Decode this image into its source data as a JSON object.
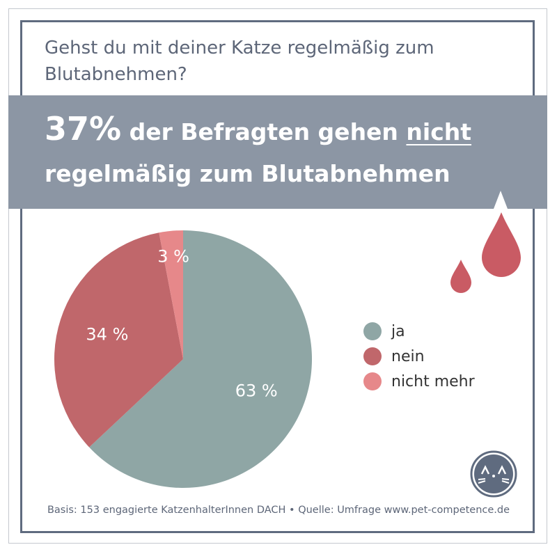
{
  "question": "Gehst du mit deiner Katze regelmäßig zum Blutabnehmen?",
  "headline": {
    "big": "37%",
    "part1": " der Befragten gehen ",
    "underlined": "nicht",
    "part2": " regelmäßig zum Blutabnehmen"
  },
  "footer": "Basis: 153 engagierte KatzenhalterInnen DACH • Quelle: Umfrage www.pet-competence.de",
  "chart_data": {
    "type": "pie",
    "title": "Gehst du mit deiner Katze regelmäßig zum Blutabnehmen?",
    "categories": [
      "ja",
      "nein",
      "nicht mehr"
    ],
    "values": [
      63,
      34,
      3
    ],
    "labels": [
      "63 %",
      "34 %",
      "3 %"
    ],
    "colors": [
      "#8fa6a5",
      "#c0676b",
      "#e6888a"
    ],
    "legend_position": "right",
    "start": "top",
    "direction": "clockwise"
  }
}
